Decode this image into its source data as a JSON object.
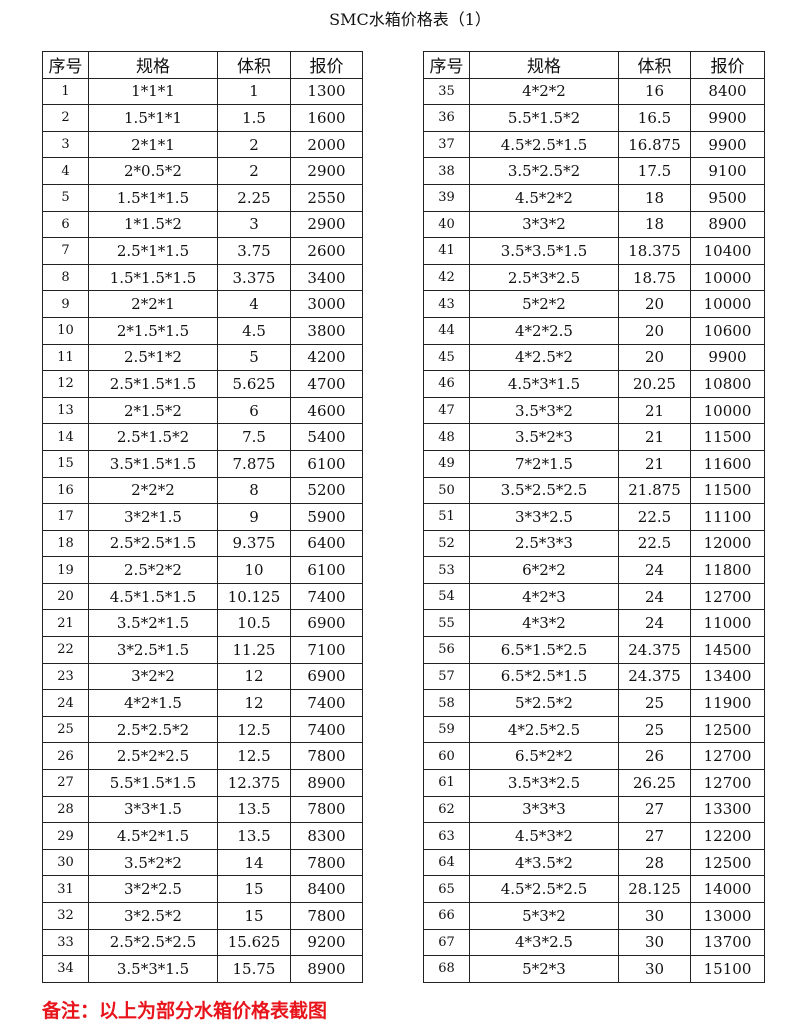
{
  "title": "SMC水箱价格表（1）",
  "headers": [
    "序号",
    "规格",
    "体积",
    "报价"
  ],
  "left_rows": [
    [
      "1",
      "1*1*1",
      "1",
      "1300"
    ],
    [
      "2",
      "1.5*1*1",
      "1.5",
      "1600"
    ],
    [
      "3",
      "2*1*1",
      "2",
      "2000"
    ],
    [
      "4",
      "2*0.5*2",
      "2",
      "2900"
    ],
    [
      "5",
      "1.5*1*1.5",
      "2.25",
      "2550"
    ],
    [
      "6",
      "1*1.5*2",
      "3",
      "2900"
    ],
    [
      "7",
      "2.5*1*1.5",
      "3.75",
      "2600"
    ],
    [
      "8",
      "1.5*1.5*1.5",
      "3.375",
      "3400"
    ],
    [
      "9",
      "2*2*1",
      "4",
      "3000"
    ],
    [
      "10",
      "2*1.5*1.5",
      "4.5",
      "3800"
    ],
    [
      "11",
      "2.5*1*2",
      "5",
      "4200"
    ],
    [
      "12",
      "2.5*1.5*1.5",
      "5.625",
      "4700"
    ],
    [
      "13",
      "2*1.5*2",
      "6",
      "4600"
    ],
    [
      "14",
      "2.5*1.5*2",
      "7.5",
      "5400"
    ],
    [
      "15",
      "3.5*1.5*1.5",
      "7.875",
      "6100"
    ],
    [
      "16",
      "2*2*2",
      "8",
      "5200"
    ],
    [
      "17",
      "3*2*1.5",
      "9",
      "5900"
    ],
    [
      "18",
      "2.5*2.5*1.5",
      "9.375",
      "6400"
    ],
    [
      "19",
      "2.5*2*2",
      "10",
      "6100"
    ],
    [
      "20",
      "4.5*1.5*1.5",
      "10.125",
      "7400"
    ],
    [
      "21",
      "3.5*2*1.5",
      "10.5",
      "6900"
    ],
    [
      "22",
      "3*2.5*1.5",
      "11.25",
      "7100"
    ],
    [
      "23",
      "3*2*2",
      "12",
      "6900"
    ],
    [
      "24",
      "4*2*1.5",
      "12",
      "7400"
    ],
    [
      "25",
      "2.5*2.5*2",
      "12.5",
      "7400"
    ],
    [
      "26",
      "2.5*2*2.5",
      "12.5",
      "7800"
    ],
    [
      "27",
      "5.5*1.5*1.5",
      "12.375",
      "8900"
    ],
    [
      "28",
      "3*3*1.5",
      "13.5",
      "7800"
    ],
    [
      "29",
      "4.5*2*1.5",
      "13.5",
      "8300"
    ],
    [
      "30",
      "3.5*2*2",
      "14",
      "7800"
    ],
    [
      "31",
      "3*2*2.5",
      "15",
      "8400"
    ],
    [
      "32",
      "3*2.5*2",
      "15",
      "7800"
    ],
    [
      "33",
      "2.5*2.5*2.5",
      "15.625",
      "9200"
    ],
    [
      "34",
      "3.5*3*1.5",
      "15.75",
      "8900"
    ]
  ],
  "right_rows": [
    [
      "35",
      "4*2*2",
      "16",
      "8400"
    ],
    [
      "36",
      "5.5*1.5*2",
      "16.5",
      "9900"
    ],
    [
      "37",
      "4.5*2.5*1.5",
      "16.875",
      "9900"
    ],
    [
      "38",
      "3.5*2.5*2",
      "17.5",
      "9100"
    ],
    [
      "39",
      "4.5*2*2",
      "18",
      "9500"
    ],
    [
      "40",
      "3*3*2",
      "18",
      "8900"
    ],
    [
      "41",
      "3.5*3.5*1.5",
      "18.375",
      "10400"
    ],
    [
      "42",
      "2.5*3*2.5",
      "18.75",
      "10000"
    ],
    [
      "43",
      "5*2*2",
      "20",
      "10000"
    ],
    [
      "44",
      "4*2*2.5",
      "20",
      "10600"
    ],
    [
      "45",
      "4*2.5*2",
      "20",
      "9900"
    ],
    [
      "46",
      "4.5*3*1.5",
      "20.25",
      "10800"
    ],
    [
      "47",
      "3.5*3*2",
      "21",
      "10000"
    ],
    [
      "48",
      "3.5*2*3",
      "21",
      "11500"
    ],
    [
      "49",
      "7*2*1.5",
      "21",
      "11600"
    ],
    [
      "50",
      "3.5*2.5*2.5",
      "21.875",
      "11500"
    ],
    [
      "51",
      "3*3*2.5",
      "22.5",
      "11100"
    ],
    [
      "52",
      "2.5*3*3",
      "22.5",
      "12000"
    ],
    [
      "53",
      "6*2*2",
      "24",
      "11800"
    ],
    [
      "54",
      "4*2*3",
      "24",
      "12700"
    ],
    [
      "55",
      "4*3*2",
      "24",
      "11000"
    ],
    [
      "56",
      "6.5*1.5*2.5",
      "24.375",
      "14500"
    ],
    [
      "57",
      "6.5*2.5*1.5",
      "24.375",
      "13400"
    ],
    [
      "58",
      "5*2.5*2",
      "25",
      "11900"
    ],
    [
      "59",
      "4*2.5*2.5",
      "25",
      "12500"
    ],
    [
      "60",
      "6.5*2*2",
      "26",
      "12700"
    ],
    [
      "61",
      "3.5*3*2.5",
      "26.25",
      "12700"
    ],
    [
      "62",
      "3*3*3",
      "27",
      "13300"
    ],
    [
      "63",
      "4.5*3*2",
      "27",
      "12200"
    ],
    [
      "64",
      "4*3.5*2",
      "28",
      "12500"
    ],
    [
      "65",
      "4.5*2.5*2.5",
      "28.125",
      "14000"
    ],
    [
      "66",
      "5*3*2",
      "30",
      "13000"
    ],
    [
      "67",
      "4*3*2.5",
      "30",
      "13700"
    ],
    [
      "68",
      "5*2*3",
      "30",
      "15100"
    ]
  ],
  "note": "备注：以上为部分水箱价格表截图",
  "colors": {
    "note": "#e8141c",
    "border": "#222222"
  }
}
